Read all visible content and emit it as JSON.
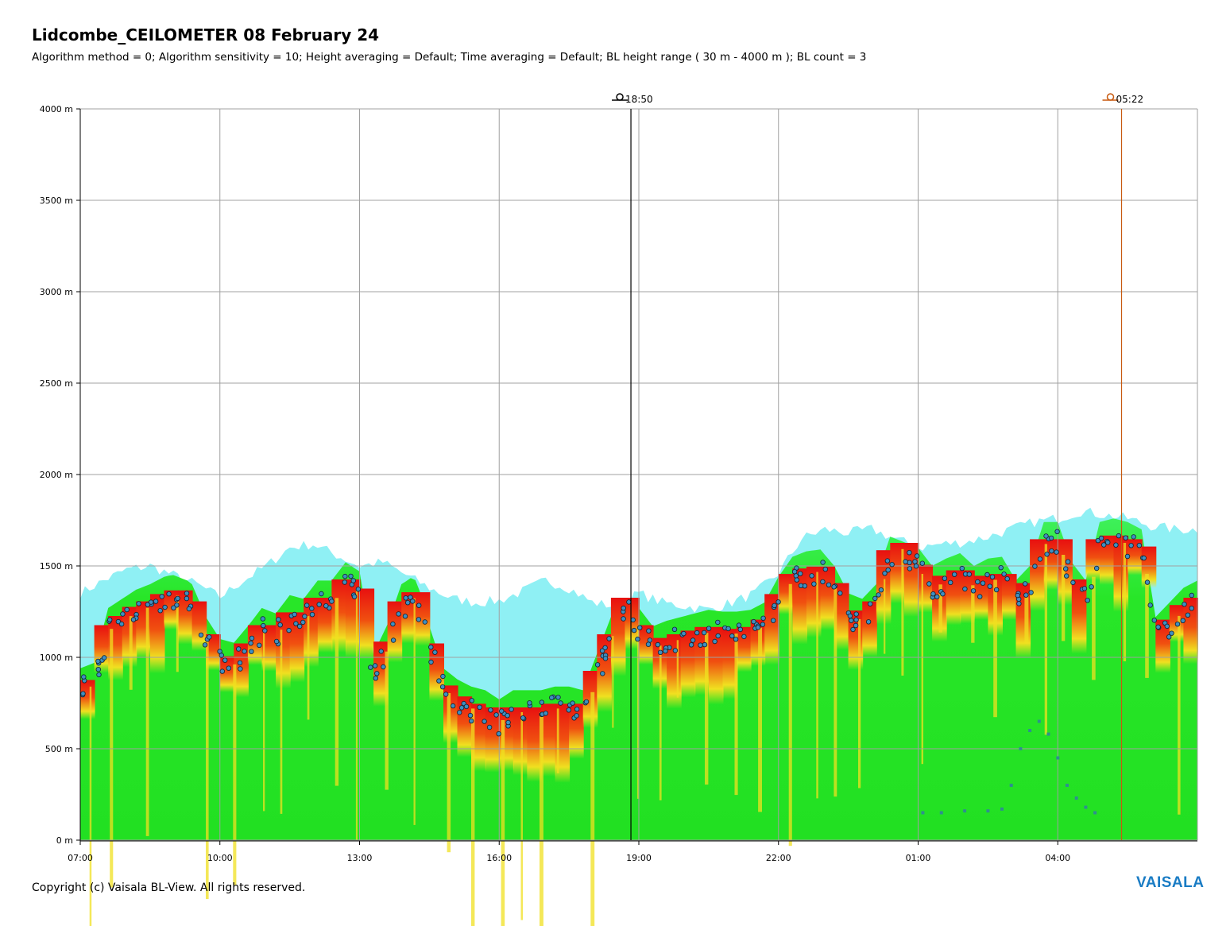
{
  "header": {
    "title": "Lidcombe_CEILOMETER 08 February 24",
    "subtitle": "Algorithm method = 0; Algorithm sensitivity = 10; Height averaging = Default; Time averaging = Default; BL height range ( 30 m - 4000 m ); BL count = 3"
  },
  "footer": {
    "copyright": "Copyright (c) Vaisala BL-View. All rights reserved.",
    "logo": "VAISALA"
  },
  "colors": {
    "background_green": "#22e022",
    "light_cyan": "#7ff0f0",
    "backscatter_red": "#e81010",
    "backscatter_yellow": "#f0e020",
    "bl_marker": "#3f8fc0",
    "sunset_marker": "#000000",
    "sunrise_marker": "#c85a10",
    "grid": "#a0a0a0"
  },
  "chart_data": {
    "type": "heatmap",
    "title": "Lidcombe_CEILOMETER 08 February 24",
    "xlabel": "",
    "ylabel": "",
    "x_tick_labels": [
      "07:00",
      "10:00",
      "13:00",
      "16:00",
      "19:00",
      "22:00",
      "01:00",
      "04:00"
    ],
    "x_tick_hours": [
      0,
      3,
      6,
      9,
      12,
      15,
      18,
      21
    ],
    "x_range_hours": [
      0,
      24
    ],
    "y_tick_labels": [
      "0 m",
      "500 m",
      "1000 m",
      "1500 m",
      "2000 m",
      "2500 m",
      "3000 m",
      "3500 m",
      "4000 m"
    ],
    "y_tick_values": [
      0,
      500,
      1000,
      1500,
      2000,
      2500,
      3000,
      3500,
      4000
    ],
    "ylim": [
      0,
      4000
    ],
    "grid": true,
    "events": [
      {
        "label": "18:50",
        "kind": "sunset",
        "hour": 11.83,
        "icon": "sunset-icon"
      },
      {
        "label": "05:22",
        "kind": "sunrise",
        "hour": 22.37,
        "icon": "sunrise-icon"
      }
    ],
    "series": [
      {
        "name": "",
        "kind": "aerosol_top",
        "points": [
          [
            0,
            1350
          ],
          [
            0.5,
            1420
          ],
          [
            1,
            1480
          ],
          [
            1.5,
            1500
          ],
          [
            2,
            1450
          ],
          [
            2.5,
            1400
          ],
          [
            3,
            1330
          ],
          [
            3.5,
            1420
          ],
          [
            4,
            1500
          ],
          [
            4.5,
            1600
          ],
          [
            5,
            1620
          ],
          [
            5.5,
            1560
          ],
          [
            6,
            1500
          ],
          [
            6.5,
            1520
          ],
          [
            7,
            1450
          ],
          [
            7.5,
            1380
          ],
          [
            8,
            1320
          ],
          [
            8.5,
            1300
          ],
          [
            9,
            1310
          ],
          [
            9.5,
            1360
          ],
          [
            10,
            1420
          ],
          [
            10.5,
            1380
          ],
          [
            11,
            1300
          ],
          [
            11.5,
            1280
          ],
          [
            12,
            1350
          ],
          [
            12.5,
            1300
          ],
          [
            13,
            1280
          ],
          [
            13.5,
            1260
          ],
          [
            14,
            1300
          ],
          [
            14.5,
            1350
          ],
          [
            15,
            1460
          ],
          [
            15.5,
            1650
          ],
          [
            16,
            1700
          ],
          [
            16.5,
            1680
          ],
          [
            17,
            1700
          ],
          [
            17.5,
            1650
          ],
          [
            18,
            1600
          ],
          [
            18.5,
            1620
          ],
          [
            19,
            1630
          ],
          [
            19.5,
            1660
          ],
          [
            20,
            1700
          ],
          [
            20.5,
            1740
          ],
          [
            21,
            1760
          ],
          [
            21.5,
            1800
          ],
          [
            22,
            1780
          ],
          [
            22.5,
            1760
          ],
          [
            23,
            1720
          ],
          [
            23.5,
            1700
          ],
          [
            24,
            1700
          ]
        ]
      },
      {
        "name": "",
        "kind": "bl_main",
        "points": [
          [
            0,
            820
          ],
          [
            0.3,
            850
          ],
          [
            0.6,
            1150
          ],
          [
            0.9,
            1200
          ],
          [
            1.2,
            1250
          ],
          [
            1.5,
            1280
          ],
          [
            1.8,
            1320
          ],
          [
            2.1,
            1340
          ],
          [
            2.4,
            1280
          ],
          [
            2.7,
            1100
          ],
          [
            3,
            980
          ],
          [
            3.3,
            960
          ],
          [
            3.6,
            1050
          ],
          [
            3.9,
            1150
          ],
          [
            4.2,
            1120
          ],
          [
            4.5,
            1220
          ],
          [
            4.8,
            1200
          ],
          [
            5.1,
            1300
          ],
          [
            5.4,
            1300
          ],
          [
            5.7,
            1400
          ],
          [
            6,
            1350
          ],
          [
            6.3,
            900
          ],
          [
            6.6,
            1060
          ],
          [
            6.9,
            1280
          ],
          [
            7.2,
            1330
          ],
          [
            7.5,
            1050
          ],
          [
            7.8,
            820
          ],
          [
            8.1,
            760
          ],
          [
            8.4,
            720
          ],
          [
            8.7,
            700
          ],
          [
            9,
            650
          ],
          [
            9.3,
            700
          ],
          [
            9.6,
            700
          ],
          [
            9.9,
            700
          ],
          [
            10.2,
            720
          ],
          [
            10.5,
            720
          ],
          [
            10.8,
            700
          ],
          [
            11.1,
            900
          ],
          [
            11.4,
            1100
          ],
          [
            11.7,
            1300
          ],
          [
            12,
            1150
          ],
          [
            12.3,
            1050
          ],
          [
            12.6,
            1080
          ],
          [
            12.9,
            1100
          ],
          [
            13.2,
            1120
          ],
          [
            13.5,
            1140
          ],
          [
            13.8,
            1130
          ],
          [
            14.1,
            1130
          ],
          [
            14.4,
            1140
          ],
          [
            14.7,
            1180
          ],
          [
            15,
            1320
          ],
          [
            15.3,
            1430
          ],
          [
            15.6,
            1460
          ],
          [
            15.9,
            1470
          ],
          [
            16.2,
            1380
          ],
          [
            16.5,
            1230
          ],
          [
            16.8,
            1200
          ],
          [
            17.1,
            1280
          ],
          [
            17.4,
            1560
          ],
          [
            17.7,
            1600
          ],
          [
            18,
            1480
          ],
          [
            18.3,
            1380
          ],
          [
            18.6,
            1420
          ],
          [
            18.9,
            1450
          ],
          [
            19.2,
            1380
          ],
          [
            19.5,
            1420
          ],
          [
            19.8,
            1430
          ],
          [
            20.1,
            1300
          ],
          [
            20.4,
            1380
          ],
          [
            20.7,
            1620
          ],
          [
            21,
            1620
          ],
          [
            21.3,
            1400
          ],
          [
            21.6,
            1300
          ],
          [
            21.9,
            1620
          ],
          [
            22.2,
            1640
          ],
          [
            22.5,
            1620
          ],
          [
            22.8,
            1580
          ],
          [
            23.1,
            1100
          ],
          [
            23.4,
            1180
          ],
          [
            23.7,
            1260
          ],
          [
            24,
            1300
          ]
        ]
      },
      {
        "name": "",
        "kind": "bl_low",
        "points": [
          [
            18.1,
            150
          ],
          [
            18.5,
            150
          ],
          [
            19,
            160
          ],
          [
            19.5,
            160
          ],
          [
            19.8,
            170
          ],
          [
            20,
            300
          ],
          [
            20.2,
            500
          ],
          [
            20.4,
            600
          ],
          [
            20.6,
            650
          ],
          [
            20.8,
            580
          ],
          [
            21,
            450
          ],
          [
            21.2,
            300
          ],
          [
            21.4,
            230
          ],
          [
            21.6,
            180
          ],
          [
            21.8,
            150
          ]
        ]
      }
    ]
  }
}
